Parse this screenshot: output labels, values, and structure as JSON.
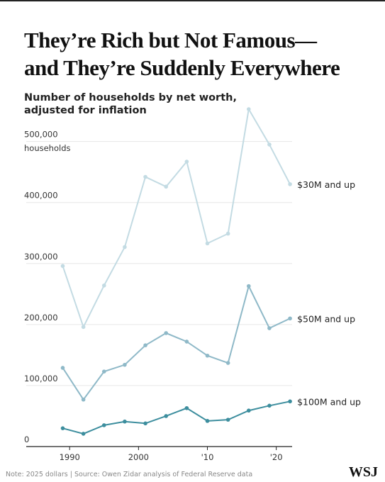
{
  "chart_data": {
    "type": "line",
    "title": [
      "They’re Rich but Not Famous—",
      "and They’re Suddenly Everywhere"
    ],
    "subtitle": [
      "Number of households by net worth,",
      "adjusted for inflation"
    ],
    "y_unit": "households",
    "note": "Note: 2025 dollars | Source: Owen Zidar analysis of Federal Reserve data",
    "logo": "WSJ",
    "x": [
      1989,
      1992,
      1995,
      1998,
      2001,
      2004,
      2007,
      2010,
      2013,
      2016,
      2019,
      2022
    ],
    "xlim": [
      1983.7,
      2022.3
    ],
    "xticks": [
      1990,
      2000,
      {
        "value": 2010,
        "label": "'10"
      },
      {
        "value": 2020,
        "label": "'20"
      }
    ],
    "ylim": [
      0,
      560000
    ],
    "yticks": [
      0,
      {
        "value": 100000,
        "label": "100,000"
      },
      {
        "value": 200000,
        "label": "200,000"
      },
      {
        "value": 300000,
        "label": "300,000"
      },
      {
        "value": 400000,
        "label": "400,000"
      },
      {
        "value": 500000,
        "label": "500,000"
      }
    ],
    "grid": true,
    "series": [
      {
        "name": "$30M and up",
        "color": "#c3dbe3",
        "values": [
          296000,
          196000,
          264000,
          327000,
          442000,
          426000,
          467000,
          333000,
          349000,
          553000,
          495000,
          430000
        ]
      },
      {
        "name": "$50M and up",
        "color": "#8fb9c8",
        "values": [
          129000,
          77000,
          123000,
          134000,
          166000,
          186000,
          172000,
          149000,
          137000,
          263000,
          194000,
          210000
        ]
      },
      {
        "name": "$100M and up",
        "color": "#3d8e9e",
        "values": [
          30000,
          21000,
          35000,
          41000,
          38000,
          50000,
          63000,
          42000,
          44000,
          59000,
          67000,
          74000
        ]
      }
    ]
  }
}
